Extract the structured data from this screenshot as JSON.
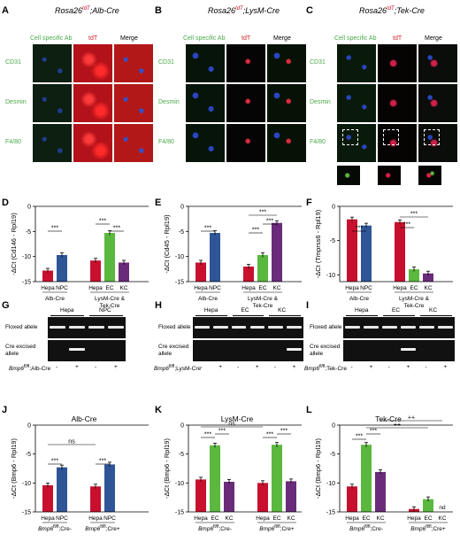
{
  "panels": {
    "A": {
      "letter": "A",
      "title_main": "Rosa26",
      "title_sup": "tdT",
      "title_rest": ";Alb-Cre"
    },
    "B": {
      "letter": "B",
      "title_main": "Rosa26",
      "title_sup": "tdT",
      "title_rest": ";LysM-Cre"
    },
    "C": {
      "letter": "C",
      "title_main": "Rosa26",
      "title_sup": "tdT",
      "title_rest": ";Tek-Cre"
    }
  },
  "micro_headers": {
    "ab": "Cell specific Ab",
    "tdt": "tdT",
    "merge": "Merge"
  },
  "micro_rows": [
    "CD31",
    "Desmin",
    "F4/80"
  ],
  "colors": {
    "hepa": "#c8102e",
    "npc": "#2f5597",
    "ec": "#5bb83e",
    "kc": "#6a2c7a",
    "green_label": "#4aa84a",
    "red_label": "#d31f2a"
  },
  "bar_panels": {
    "D": {
      "letter": "D",
      "ylabel": "-ΔCt (Cd146 - Rpl19)",
      "ticks": [
        "0",
        "-5",
        "-10",
        "-15"
      ],
      "group1": {
        "cats": [
          "Hepa",
          "NPC"
        ],
        "label": "Alb-Cre"
      },
      "group2": {
        "cats": [
          "Hepa",
          "EC",
          "KC"
        ],
        "label": "LysM-Cre & Tek-Cre"
      },
      "sig": [
        "***",
        "***",
        "***"
      ]
    },
    "E": {
      "letter": "E",
      "ylabel": "-ΔCt (Cd45 - Rpl19)",
      "ticks": [
        "0",
        "-5",
        "-10",
        "-15"
      ],
      "group1": {
        "cats": [
          "Hepa",
          "NPC"
        ],
        "label": "Alb-Cre"
      },
      "group2": {
        "cats": [
          "Hepa",
          "EC",
          "KC"
        ],
        "label": "LysM-Cre & Tek-Cre"
      },
      "sig": [
        "***",
        "***",
        "***"
      ]
    },
    "F": {
      "letter": "F",
      "ylabel": "-ΔCt (Tmprss6 - Rpl19)",
      "ticks": [
        "0",
        "-5",
        "-10"
      ],
      "group1": {
        "cats": [
          "Hepa",
          "NPC"
        ],
        "label": "Alb-Cre"
      },
      "group2": {
        "cats": [
          "Hepa",
          "EC",
          "KC"
        ],
        "label": "LysM-Cre & Tek-Cre"
      },
      "sig": [
        "***",
        "***",
        "***"
      ]
    },
    "J": {
      "letter": "J",
      "title": "Alb-Cre",
      "ylabel": "-ΔCt (Bmp6 - Rpl19)",
      "ticks": [
        "0",
        "-5",
        "-10",
        "-15"
      ],
      "group1": {
        "cats": [
          "Hepa",
          "NPC"
        ],
        "label": "Bmp6fl/fl;Cre-"
      },
      "group2": {
        "cats": [
          "Hepa",
          "NPC"
        ],
        "label": "Bmp6fl/fl;Cre+"
      },
      "sig": [
        "***",
        "***",
        "ns"
      ]
    },
    "K": {
      "letter": "K",
      "title": "LysM-Cre",
      "ylabel": "-ΔCt (Bmp6 - Rpl19)",
      "ticks": [
        "0",
        "-5",
        "-10",
        "-15"
      ],
      "group1": {
        "cats": [
          "Hepa",
          "EC",
          "KC"
        ],
        "label": "Bmp6fl/fl;Cre-"
      },
      "group2": {
        "cats": [
          "Hepa",
          "EC",
          "KC"
        ],
        "label": "Bmp6fl/fl;Cre+"
      },
      "sig": [
        "***",
        "***",
        "***",
        "***",
        "ns"
      ]
    },
    "L": {
      "letter": "L",
      "title": "Tek-Cre",
      "ylabel": "-ΔCt (Bmp6 - Rpl19)",
      "ticks": [
        "0",
        "-5",
        "-10",
        "-15"
      ],
      "group1": {
        "cats": [
          "Hepa",
          "EC",
          "KC"
        ],
        "label": "Bmp6fl/fl;Cre-"
      },
      "group2": {
        "cats": [
          "Hepa",
          "EC",
          "KC"
        ],
        "label": "Bmp6fl/fl;Cre+"
      },
      "sig": [
        "***",
        "***",
        "++",
        "++"
      ],
      "nd": "nd"
    }
  },
  "chart_data": [
    {
      "panel": "D",
      "type": "bar",
      "ylabel": "-ΔCt (Cd146 - Rpl19)",
      "ylim": [
        -15,
        0
      ],
      "categories": [
        "Hepa",
        "NPC",
        "Hepa",
        "EC",
        "KC"
      ],
      "values": [
        -12.8,
        -9.7,
        -10.8,
        -5.3,
        -11.2
      ],
      "groups": [
        "Alb-Cre",
        "Alb-Cre",
        "LysM-Cre & Tek-Cre",
        "LysM-Cre & Tek-Cre",
        "LysM-Cre & Tek-Cre"
      ]
    },
    {
      "panel": "E",
      "type": "bar",
      "ylabel": "-ΔCt (Cd45 - Rpl19)",
      "ylim": [
        -15,
        0
      ],
      "categories": [
        "Hepa",
        "NPC",
        "Hepa",
        "EC",
        "KC"
      ],
      "values": [
        -11.2,
        -5.3,
        -12.0,
        -9.7,
        -3.3
      ],
      "groups": [
        "Alb-Cre",
        "Alb-Cre",
        "LysM-Cre & Tek-Cre",
        "LysM-Cre & Tek-Cre",
        "LysM-Cre & Tek-Cre"
      ]
    },
    {
      "panel": "F",
      "type": "bar",
      "ylabel": "-ΔCt (Tmprss6 - Rpl19)",
      "ylim": [
        -11,
        0
      ],
      "categories": [
        "Hepa",
        "NPC",
        "Hepa",
        "EC",
        "KC"
      ],
      "values": [
        -1.9,
        -2.8,
        -2.3,
        -9.2,
        -9.8
      ],
      "groups": [
        "Alb-Cre",
        "Alb-Cre",
        "LysM-Cre & Tek-Cre",
        "LysM-Cre & Tek-Cre",
        "LysM-Cre & Tek-Cre"
      ]
    },
    {
      "panel": "J",
      "type": "bar",
      "ylabel": "-ΔCt (Bmp6 - Rpl19)",
      "ylim": [
        -15,
        0
      ],
      "categories": [
        "Hepa",
        "NPC",
        "Hepa",
        "NPC"
      ],
      "values": [
        -10.4,
        -7.3,
        -10.6,
        -6.8
      ],
      "groups": [
        "Bmp6fl/fl;Cre-",
        "Bmp6fl/fl;Cre-",
        "Bmp6fl/fl;Cre+",
        "Bmp6fl/fl;Cre+"
      ]
    },
    {
      "panel": "K",
      "type": "bar",
      "ylabel": "-ΔCt (Bmp6 - Rpl19)",
      "ylim": [
        -15,
        0
      ],
      "categories": [
        "Hepa",
        "EC",
        "KC",
        "Hepa",
        "EC",
        "KC"
      ],
      "values": [
        -9.4,
        -3.5,
        -9.8,
        -10.0,
        -3.4,
        -9.7
      ],
      "groups": [
        "Bmp6fl/fl;Cre-",
        "Bmp6fl/fl;Cre-",
        "Bmp6fl/fl;Cre-",
        "Bmp6fl/fl;Cre+",
        "Bmp6fl/fl;Cre+",
        "Bmp6fl/fl;Cre+"
      ]
    },
    {
      "panel": "L",
      "type": "bar",
      "ylabel": "-ΔCt (Bmp6 - Rpl19)",
      "ylim": [
        -15,
        0
      ],
      "categories": [
        "Hepa",
        "EC",
        "KC",
        "Hepa",
        "EC",
        "KC"
      ],
      "values": [
        -10.6,
        -3.4,
        -8.1,
        -14.5,
        -12.8,
        null
      ],
      "groups": [
        "Bmp6fl/fl;Cre-",
        "Bmp6fl/fl;Cre-",
        "Bmp6fl/fl;Cre-",
        "Bmp6fl/fl;Cre+",
        "Bmp6fl/fl;Cre+",
        "Bmp6fl/fl;Cre+"
      ]
    }
  ],
  "gels": {
    "G": {
      "letter": "G",
      "cols": [
        "Hepa",
        "NPC"
      ],
      "floxed": "Floxed allele",
      "excised": "Cre excised allele",
      "genotype": "Bmp6fl/fl;Alb-Cre",
      "signs": [
        "-",
        "+",
        "-",
        "+"
      ]
    },
    "H": {
      "letter": "H",
      "cols": [
        "Hepa",
        "EC",
        "KC"
      ],
      "floxed": "Floxed allele",
      "excised": "Cre excised allele",
      "genotype": "Bmp6fl/fl;LysM-Cre",
      "signs": [
        "-",
        "+",
        "-",
        "+",
        "-",
        "+"
      ]
    },
    "I": {
      "letter": "I",
      "cols": [
        "Hepa",
        "EC",
        "KC"
      ],
      "floxed": "Floxed allele",
      "excised": "Cre excised allele",
      "genotype": "Bmp6fl/fl;Tek-Cre",
      "signs": [
        "-",
        "+",
        "-",
        "+",
        "-",
        "+"
      ]
    }
  }
}
